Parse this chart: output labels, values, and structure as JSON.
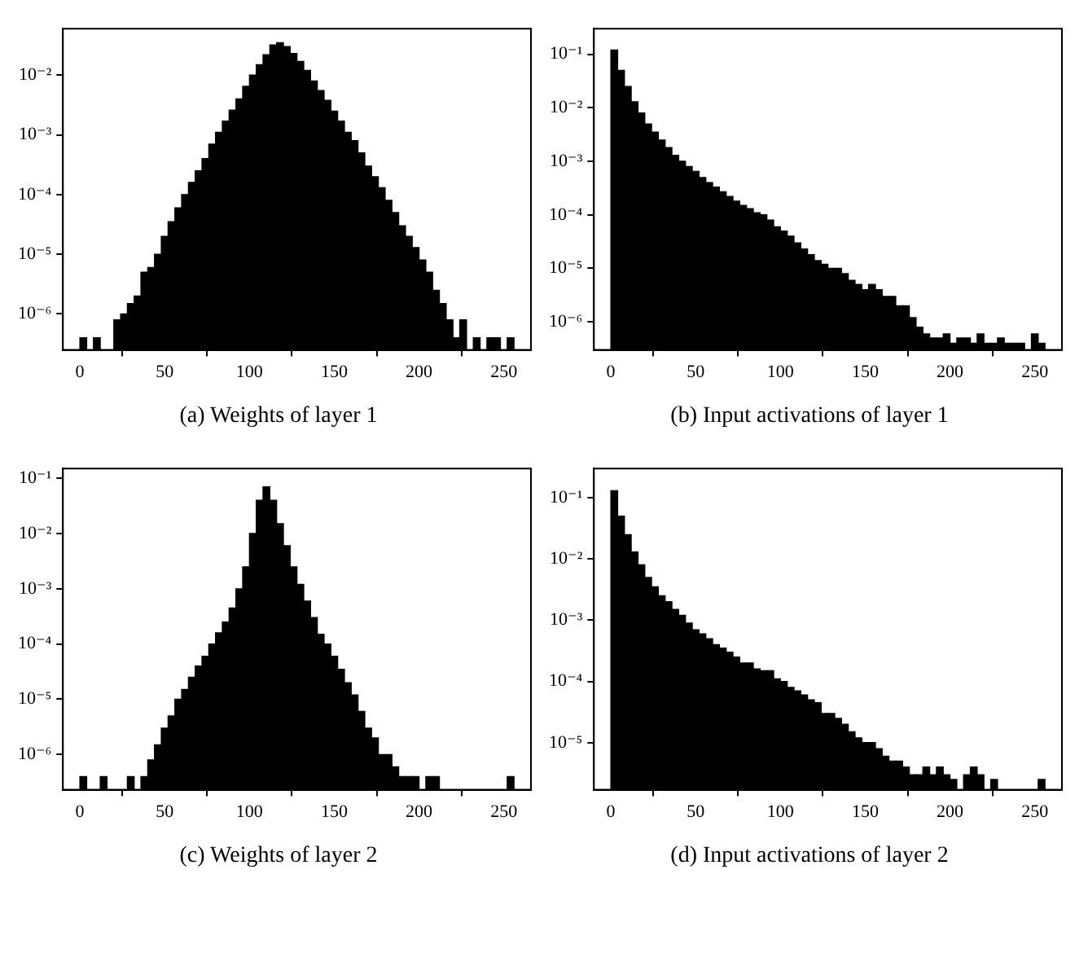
{
  "chart_data": [
    {
      "type": "histogram",
      "title": "(a) Weights of layer 1",
      "bins": [
        0,
        4,
        8,
        12,
        16,
        20,
        24,
        28,
        32,
        36,
        40,
        44,
        48,
        52,
        56,
        60,
        64,
        68,
        72,
        76,
        80,
        84,
        88,
        92,
        96,
        100,
        104,
        108,
        112,
        116,
        120,
        124,
        128,
        132,
        136,
        140,
        144,
        148,
        152,
        156,
        160,
        164,
        168,
        172,
        176,
        180,
        184,
        188,
        192,
        196,
        200,
        204,
        208,
        212,
        216,
        220,
        224,
        228,
        232,
        236,
        240,
        244,
        248,
        252,
        256
      ],
      "values": [
        4e-07,
        null,
        4e-07,
        null,
        null,
        8e-07,
        1e-06,
        1.5e-06,
        2e-06,
        5e-06,
        6e-06,
        1e-05,
        2e-05,
        3.5e-05,
        6e-05,
        0.0001,
        0.00016,
        0.00025,
        0.0004,
        0.0007,
        0.0011,
        0.0017,
        0.0026,
        0.004,
        0.0065,
        0.01,
        0.015,
        0.022,
        0.032,
        0.035,
        0.03,
        0.023,
        0.017,
        0.012,
        0.008,
        0.0055,
        0.0038,
        0.0025,
        0.0017,
        0.0011,
        0.0008,
        0.0005,
        0.0003,
        0.0002,
        0.00013,
        8e-05,
        5e-05,
        3e-05,
        2e-05,
        1.3e-05,
        8e-06,
        5e-06,
        2.5e-06,
        1.5e-06,
        8e-07,
        4e-07,
        8e-07,
        null,
        4e-07,
        null,
        4e-07,
        4e-07,
        null,
        4e-07
      ],
      "color": "#000000",
      "log": "y",
      "grid": false,
      "xlim": [
        -10,
        266
      ],
      "xticks": [
        0,
        50,
        100,
        150,
        200,
        250
      ],
      "ylim": [
        2.5e-07,
        0.06
      ],
      "yticks": [
        {
          "value": 1e-06,
          "label": "10⁻⁶"
        },
        {
          "value": 1e-05,
          "label": "10⁻⁵"
        },
        {
          "value": 0.0001,
          "label": "10⁻⁴"
        },
        {
          "value": 0.001,
          "label": "10⁻³"
        },
        {
          "value": 0.01,
          "label": "10⁻²"
        }
      ]
    },
    {
      "type": "histogram",
      "title": "(b) Input activations of layer 1",
      "bins": [
        0,
        4,
        8,
        12,
        16,
        20,
        24,
        28,
        32,
        36,
        40,
        44,
        48,
        52,
        56,
        60,
        64,
        68,
        72,
        76,
        80,
        84,
        88,
        92,
        96,
        100,
        104,
        108,
        112,
        116,
        120,
        124,
        128,
        132,
        136,
        140,
        144,
        148,
        152,
        156,
        160,
        164,
        168,
        172,
        176,
        180,
        184,
        188,
        192,
        196,
        200,
        204,
        208,
        212,
        216,
        220,
        224,
        228,
        232,
        236,
        240,
        244,
        248,
        252,
        256
      ],
      "values": [
        0.12,
        0.05,
        0.025,
        0.013,
        0.008,
        0.005,
        0.0035,
        0.0025,
        0.0018,
        0.0013,
        0.001,
        0.0008,
        0.00065,
        0.0005,
        0.0004,
        0.00033,
        0.00027,
        0.00022,
        0.00018,
        0.00015,
        0.00013,
        0.00011,
        0.0001,
        8e-05,
        6e-05,
        5e-05,
        4e-05,
        3e-05,
        2.3e-05,
        1.8e-05,
        1.4e-05,
        1.2e-05,
        1e-05,
        1e-05,
        8e-06,
        6e-06,
        5e-06,
        4e-06,
        5e-06,
        4e-06,
        3e-06,
        3e-06,
        2e-06,
        2e-06,
        1.2e-06,
        8e-07,
        6e-07,
        5e-07,
        5e-07,
        6e-07,
        4e-07,
        5e-07,
        5e-07,
        4e-07,
        6e-07,
        4e-07,
        4e-07,
        5e-07,
        4e-07,
        4e-07,
        4e-07,
        null,
        6e-07,
        4e-07
      ],
      "color": "#000000",
      "log": "y",
      "grid": false,
      "xlim": [
        -10,
        266
      ],
      "xticks": [
        0,
        50,
        100,
        150,
        200,
        250
      ],
      "ylim": [
        3e-07,
        0.3
      ],
      "yticks": [
        {
          "value": 1e-06,
          "label": "10⁻⁶"
        },
        {
          "value": 1e-05,
          "label": "10⁻⁵"
        },
        {
          "value": 0.0001,
          "label": "10⁻⁴"
        },
        {
          "value": 0.001,
          "label": "10⁻³"
        },
        {
          "value": 0.01,
          "label": "10⁻²"
        },
        {
          "value": 0.1,
          "label": "10⁻¹"
        }
      ]
    },
    {
      "type": "histogram",
      "title": "(c) Weights of layer 2",
      "bins": [
        0,
        4,
        8,
        12,
        16,
        20,
        24,
        28,
        32,
        36,
        40,
        44,
        48,
        52,
        56,
        60,
        64,
        68,
        72,
        76,
        80,
        84,
        88,
        92,
        96,
        100,
        104,
        108,
        112,
        116,
        120,
        124,
        128,
        132,
        136,
        140,
        144,
        148,
        152,
        156,
        160,
        164,
        168,
        172,
        176,
        180,
        184,
        188,
        192,
        196,
        200,
        204,
        208,
        212,
        216,
        220,
        224,
        228,
        232,
        236,
        240,
        244,
        248,
        252,
        256
      ],
      "values": [
        4e-07,
        null,
        null,
        4e-07,
        null,
        null,
        null,
        4e-07,
        null,
        4e-07,
        8e-07,
        1.5e-06,
        3e-06,
        5e-06,
        1e-05,
        1.5e-05,
        2.5e-05,
        4e-05,
        6e-05,
        0.0001,
        0.00016,
        0.00025,
        0.00045,
        0.001,
        0.0025,
        0.01,
        0.04,
        0.07,
        0.04,
        0.015,
        0.006,
        0.0025,
        0.0012,
        0.0006,
        0.0003,
        0.00015,
        0.0001,
        6e-05,
        3.5e-05,
        2e-05,
        1.2e-05,
        6e-06,
        3e-06,
        2e-06,
        1e-06,
        1e-06,
        6e-07,
        4e-07,
        4e-07,
        4e-07,
        null,
        4e-07,
        4e-07,
        null,
        null,
        null,
        null,
        null,
        null,
        null,
        null,
        null,
        null,
        4e-07
      ],
      "color": "#000000",
      "log": "y",
      "grid": false,
      "xlim": [
        -10,
        266
      ],
      "xticks": [
        0,
        50,
        100,
        150,
        200,
        250
      ],
      "ylim": [
        2.3e-07,
        0.15
      ],
      "yticks": [
        {
          "value": 1e-06,
          "label": "10⁻⁶"
        },
        {
          "value": 1e-05,
          "label": "10⁻⁵"
        },
        {
          "value": 0.0001,
          "label": "10⁻⁴"
        },
        {
          "value": 0.001,
          "label": "10⁻³"
        },
        {
          "value": 0.01,
          "label": "10⁻²"
        },
        {
          "value": 0.1,
          "label": "10⁻¹"
        }
      ]
    },
    {
      "type": "histogram",
      "title": "(d) Input activations of layer 2",
      "bins": [
        0,
        4,
        8,
        12,
        16,
        20,
        24,
        28,
        32,
        36,
        40,
        44,
        48,
        52,
        56,
        60,
        64,
        68,
        72,
        76,
        80,
        84,
        88,
        92,
        96,
        100,
        104,
        108,
        112,
        116,
        120,
        124,
        128,
        132,
        136,
        140,
        144,
        148,
        152,
        156,
        160,
        164,
        168,
        172,
        176,
        180,
        184,
        188,
        192,
        196,
        200,
        204,
        208,
        212,
        216,
        220,
        224,
        228,
        232,
        236,
        240,
        244,
        248,
        252,
        256
      ],
      "values": [
        0.13,
        0.05,
        0.025,
        0.013,
        0.008,
        0.005,
        0.0035,
        0.0025,
        0.002,
        0.0015,
        0.0012,
        0.0009,
        0.0007,
        0.0006,
        0.0005,
        0.0004,
        0.00035,
        0.0003,
        0.00025,
        0.0002,
        0.0002,
        0.00016,
        0.00015,
        0.00015,
        0.00011,
        0.0001,
        8e-05,
        7e-05,
        6e-05,
        5e-05,
        4.5e-05,
        3e-05,
        3e-05,
        2.5e-05,
        2e-05,
        1.5e-05,
        1.2e-05,
        1e-05,
        1e-05,
        8e-06,
        6e-06,
        5e-06,
        5e-06,
        4e-06,
        3e-06,
        3e-06,
        4e-06,
        3e-06,
        4e-06,
        3e-06,
        2.5e-06,
        null,
        3e-06,
        4e-06,
        3e-06,
        null,
        2.5e-06,
        null,
        null,
        null,
        null,
        null,
        null,
        2.5e-06
      ],
      "color": "#000000",
      "log": "y",
      "grid": false,
      "xlim": [
        -10,
        266
      ],
      "xticks": [
        0,
        50,
        100,
        150,
        200,
        250
      ],
      "ylim": [
        1.7e-06,
        0.3
      ],
      "yticks": [
        {
          "value": 1e-05,
          "label": "10⁻⁵"
        },
        {
          "value": 0.0001,
          "label": "10⁻⁴"
        },
        {
          "value": 0.001,
          "label": "10⁻³"
        },
        {
          "value": 0.01,
          "label": "10⁻²"
        },
        {
          "value": 0.1,
          "label": "10⁻¹"
        }
      ]
    }
  ]
}
